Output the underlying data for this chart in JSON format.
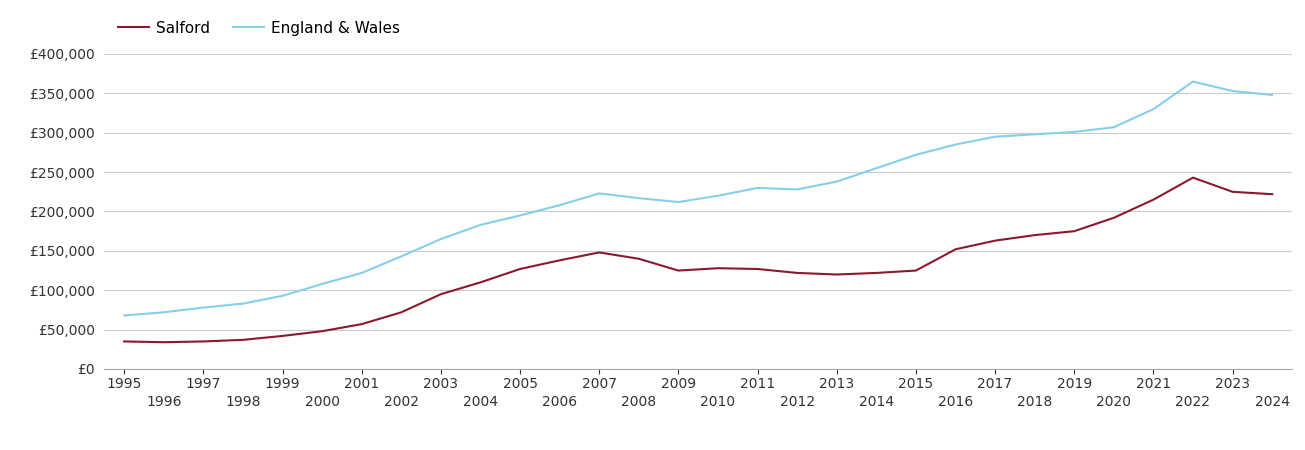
{
  "salford_years": [
    1995,
    1996,
    1997,
    1998,
    1999,
    2000,
    2001,
    2002,
    2003,
    2004,
    2005,
    2006,
    2007,
    2008,
    2009,
    2010,
    2011,
    2012,
    2013,
    2014,
    2015,
    2016,
    2017,
    2018,
    2019,
    2020,
    2021,
    2022,
    2023,
    2024
  ],
  "salford_values": [
    35000,
    34000,
    35000,
    37000,
    42000,
    48000,
    57000,
    72000,
    95000,
    110000,
    127000,
    138000,
    148000,
    140000,
    125000,
    128000,
    127000,
    122000,
    120000,
    122000,
    125000,
    152000,
    163000,
    170000,
    175000,
    192000,
    215000,
    243000,
    225000,
    222000
  ],
  "england_years": [
    1995,
    1996,
    1997,
    1998,
    1999,
    2000,
    2001,
    2002,
    2003,
    2004,
    2005,
    2006,
    2007,
    2008,
    2009,
    2010,
    2011,
    2012,
    2013,
    2014,
    2015,
    2016,
    2017,
    2018,
    2019,
    2020,
    2021,
    2022,
    2023,
    2024
  ],
  "england_values": [
    68000,
    72000,
    78000,
    83000,
    93000,
    108000,
    122000,
    143000,
    165000,
    183000,
    195000,
    208000,
    223000,
    217000,
    212000,
    220000,
    230000,
    228000,
    238000,
    255000,
    272000,
    285000,
    295000,
    298000,
    301000,
    307000,
    330000,
    365000,
    353000,
    348000
  ],
  "salford_color": "#8B1A2A",
  "england_color": "#87CEEB",
  "ylim": [
    0,
    400000
  ],
  "yticks": [
    0,
    50000,
    100000,
    150000,
    200000,
    250000,
    300000,
    350000,
    400000
  ],
  "xlim_left": 1994.5,
  "xlim_right": 2024.5,
  "xticks_odd": [
    1995,
    1997,
    1999,
    2001,
    2003,
    2005,
    2007,
    2009,
    2011,
    2013,
    2015,
    2017,
    2019,
    2021,
    2023
  ],
  "xticks_even": [
    1996,
    1998,
    2000,
    2002,
    2004,
    2006,
    2008,
    2010,
    2012,
    2014,
    2016,
    2018,
    2020,
    2022,
    2024
  ],
  "legend_salford": "Salford",
  "legend_england": "England & Wales",
  "background_color": "#ffffff",
  "grid_color": "#cccccc",
  "line_width": 1.5,
  "tick_fontsize": 10
}
